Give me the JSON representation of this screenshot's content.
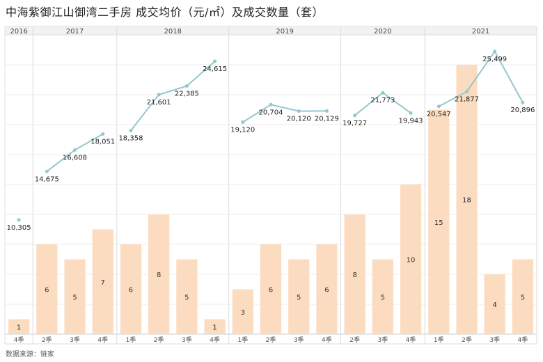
{
  "title": "中海紫御江山御湾二手房 成交均价（元/㎡）及成交数量（套）",
  "source": "数据来源：链家",
  "colors": {
    "bar": "#fcdcc0",
    "line": "#93c8cd",
    "grid": "#dddddd",
    "header_bg": "#f2f2f2"
  },
  "chart_data": {
    "type": "bar",
    "years": [
      {
        "label": "2016",
        "count": 1
      },
      {
        "label": "2017",
        "count": 3
      },
      {
        "label": "2018",
        "count": 4
      },
      {
        "label": "2019",
        "count": 4
      },
      {
        "label": "2020",
        "count": 3
      },
      {
        "label": "2021",
        "count": 4
      }
    ],
    "categories": [
      "4季",
      "2季",
      "3季",
      "4季",
      "1季",
      "2季",
      "3季",
      "4季",
      "1季",
      "2季",
      "3季",
      "4季",
      "2季",
      "3季",
      "4季",
      "1季",
      "2季",
      "3季",
      "4季"
    ],
    "series": [
      {
        "type": "bar",
        "values": [
          1,
          6,
          5,
          7,
          6,
          8,
          5,
          1,
          3,
          6,
          5,
          6,
          8,
          5,
          10,
          15,
          18,
          4,
          5
        ]
      },
      {
        "type": "line",
        "values": [
          10305,
          14675,
          16608,
          18051,
          18358,
          21601,
          22385,
          24615,
          19120,
          20704,
          20120,
          20129,
          19727,
          21773,
          19943,
          20547,
          21877,
          25499,
          20896
        ]
      }
    ],
    "value_labels": {
      "bar": [
        "1",
        "6",
        "5",
        "7",
        "6",
        "8",
        "5",
        "1",
        "3",
        "6",
        "5",
        "6",
        "8",
        "5",
        "10",
        "15",
        "18",
        "4",
        "5"
      ],
      "line": [
        "10,305",
        "14,675",
        "16,608",
        "18,051",
        "18,358",
        "21,601",
        "22,385",
        "24,615",
        "19,120",
        "20,704",
        "20,120",
        "20,129",
        "19,727",
        "21,773",
        "19,943",
        "20,547",
        "21,877",
        "25,499",
        "20,896"
      ]
    },
    "bar_ylim": [
      0,
      20
    ],
    "line_ylim": [
      0,
      27000
    ],
    "line_segments": [
      [
        0,
        0
      ],
      [
        1,
        3
      ],
      [
        4,
        7
      ],
      [
        8,
        11
      ],
      [
        12,
        14
      ],
      [
        15,
        18
      ]
    ],
    "grid": true,
    "legend": "none"
  }
}
